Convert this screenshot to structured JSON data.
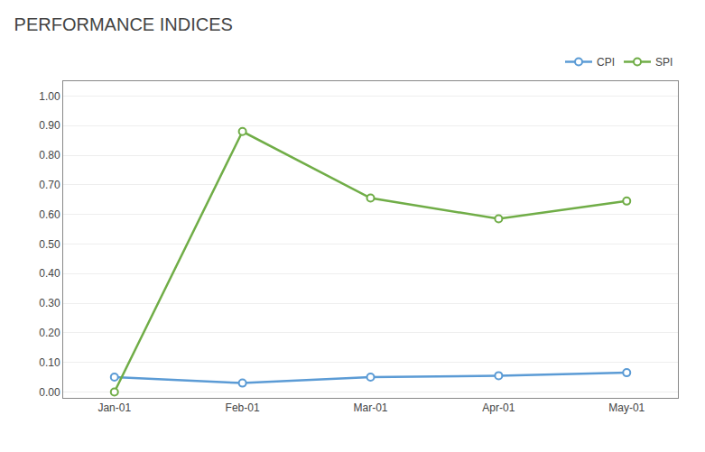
{
  "chart_data": {
    "type": "line",
    "title": "PERFORMANCE INDICES",
    "categories": [
      "Jan-01",
      "Feb-01",
      "Mar-01",
      "Apr-01",
      "May-01"
    ],
    "series": [
      {
        "name": "CPI",
        "color": "#5B9BD5",
        "values": [
          0.05,
          0.03,
          0.05,
          0.055,
          0.065
        ]
      },
      {
        "name": "SPI",
        "color": "#70AD47",
        "values": [
          0.0,
          0.88,
          0.655,
          0.585,
          0.645
        ]
      }
    ],
    "ylim": [
      -0.02,
      1.05
    ],
    "yticks": [
      {
        "value": 0.0,
        "label": "0.00"
      },
      {
        "value": 0.1,
        "label": "0.10"
      },
      {
        "value": 0.2,
        "label": "0.20"
      },
      {
        "value": 0.3,
        "label": "0.30"
      },
      {
        "value": 0.4,
        "label": "0.40"
      },
      {
        "value": 0.5,
        "label": "0.50"
      },
      {
        "value": 0.6,
        "label": "0.60"
      },
      {
        "value": 0.7,
        "label": "0.70"
      },
      {
        "value": 0.8,
        "label": "0.80"
      },
      {
        "value": 0.9,
        "label": "0.90"
      },
      {
        "value": 1.0,
        "label": "1.00"
      }
    ],
    "grid": true,
    "legend": "upper right",
    "marker": "circle",
    "line_style": "solid"
  }
}
